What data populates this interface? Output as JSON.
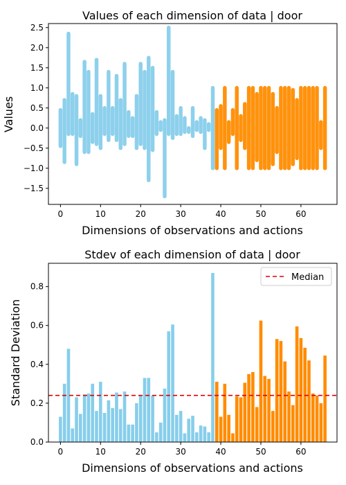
{
  "chart_data": [
    {
      "type": "scatter",
      "title": "Values of each dimension of data | door",
      "xlabel": "Dimensions of observations and actions",
      "ylabel": "Values",
      "xlim": [
        -3,
        69
      ],
      "ylim": [
        -1.9,
        2.6
      ],
      "xticks": [
        0,
        10,
        20,
        30,
        40,
        50,
        60
      ],
      "yticks": [
        -1.5,
        -1.0,
        -0.5,
        0.0,
        0.5,
        1.0,
        1.5,
        2.0,
        2.5
      ],
      "xtick_labels": [
        "0",
        "10",
        "20",
        "30",
        "40",
        "50",
        "60"
      ],
      "ytick_labels": [
        "−1.5",
        "−1.0",
        "−0.5",
        "0.0",
        "0.5",
        "1.0",
        "1.5",
        "2.0",
        "2.5"
      ],
      "observation_color": "#87ceeb",
      "action_color": "#ff8c00",
      "observation_dims": 39,
      "ranges": [
        [
          -0.45,
          0.45
        ],
        [
          -0.85,
          0.7
        ],
        [
          -0.15,
          2.35
        ],
        [
          -0.15,
          0.85
        ],
        [
          -0.9,
          0.8
        ],
        [
          -0.2,
          0.2
        ],
        [
          -0.6,
          1.65
        ],
        [
          -0.6,
          1.4
        ],
        [
          -0.35,
          0.35
        ],
        [
          -0.4,
          1.7
        ],
        [
          -0.5,
          0.8
        ],
        [
          -0.15,
          0.5
        ],
        [
          -0.3,
          1.4
        ],
        [
          -0.15,
          0.5
        ],
        [
          -0.3,
          1.3
        ],
        [
          -0.5,
          0.7
        ],
        [
          -0.4,
          1.6
        ],
        [
          -0.2,
          0.4
        ],
        [
          -0.2,
          0.25
        ],
        [
          -0.5,
          0.8
        ],
        [
          -0.4,
          1.6
        ],
        [
          -0.5,
          1.4
        ],
        [
          -1.3,
          1.75
        ],
        [
          -0.55,
          1.5
        ],
        [
          -0.15,
          0.4
        ],
        [
          -0.05,
          0.15
        ],
        [
          -1.7,
          0.2
        ],
        [
          -0.15,
          2.5
        ],
        [
          -0.25,
          1.4
        ],
        [
          -0.15,
          0.3
        ],
        [
          -0.15,
          0.5
        ],
        [
          -0.1,
          0.25
        ],
        [
          -0.1,
          0.0
        ],
        [
          -0.2,
          0.5
        ],
        [
          -0.05,
          0.15
        ],
        [
          -0.1,
          0.25
        ],
        [
          -0.5,
          0.2
        ],
        [
          -0.05,
          0.1
        ],
        [
          -1.0,
          1.0
        ],
        [
          -1.0,
          0.45
        ],
        [
          -0.5,
          0.55
        ],
        [
          -1.0,
          1.0
        ],
        [
          -0.35,
          0.15
        ],
        [
          -0.15,
          0.45
        ],
        [
          -1.0,
          1.0
        ],
        [
          -0.3,
          0.3
        ],
        [
          -0.5,
          0.6
        ],
        [
          -1.0,
          1.0
        ],
        [
          -1.0,
          1.0
        ],
        [
          -0.8,
          0.85
        ],
        [
          -1.0,
          1.0
        ],
        [
          -1.0,
          1.0
        ],
        [
          -1.0,
          1.0
        ],
        [
          -0.9,
          0.85
        ],
        [
          -0.6,
          0.5
        ],
        [
          -1.0,
          1.0
        ],
        [
          -1.0,
          1.0
        ],
        [
          -1.0,
          1.0
        ],
        [
          -0.9,
          0.95
        ],
        [
          -0.75,
          0.7
        ],
        [
          -1.0,
          1.0
        ],
        [
          -1.0,
          1.0
        ],
        [
          -1.0,
          1.0
        ],
        [
          -1.0,
          1.0
        ],
        [
          -1.0,
          1.0
        ],
        [
          -0.5,
          0.15
        ],
        [
          -1.0,
          1.0
        ]
      ]
    },
    {
      "type": "bar",
      "title": "Stdev of each dimension of data | door",
      "xlabel": "Dimensions of observations and actions",
      "ylabel": "Standard Deviation",
      "xlim": [
        -3,
        69
      ],
      "ylim": [
        0,
        0.92
      ],
      "xticks": [
        0,
        10,
        20,
        30,
        40,
        50,
        60
      ],
      "yticks": [
        0.0,
        0.2,
        0.4,
        0.6,
        0.8
      ],
      "xtick_labels": [
        "0",
        "10",
        "20",
        "30",
        "40",
        "50",
        "60"
      ],
      "ytick_labels": [
        "0.0",
        "0.2",
        "0.4",
        "0.6",
        "0.8"
      ],
      "observation_color": "#87ceeb",
      "action_color": "#ff8c00",
      "median_color": "#dd0000",
      "observation_dims": 39,
      "median": 0.24,
      "legend": [
        "Median"
      ],
      "legend_position": "upper-right",
      "values": [
        0.13,
        0.3,
        0.48,
        0.07,
        0.23,
        0.145,
        0.245,
        0.25,
        0.3,
        0.16,
        0.31,
        0.15,
        0.215,
        0.175,
        0.255,
        0.17,
        0.26,
        0.09,
        0.09,
        0.2,
        0.24,
        0.33,
        0.33,
        0.24,
        0.05,
        0.1,
        0.275,
        0.57,
        0.605,
        0.14,
        0.16,
        0.045,
        0.12,
        0.135,
        0.05,
        0.085,
        0.08,
        0.05,
        0.87,
        0.31,
        0.13,
        0.3,
        0.14,
        0.045,
        0.235,
        0.23,
        0.305,
        0.35,
        0.36,
        0.18,
        0.625,
        0.34,
        0.325,
        0.16,
        0.53,
        0.52,
        0.415,
        0.26,
        0.19,
        0.595,
        0.535,
        0.485,
        0.42,
        0.25,
        0.24,
        0.2,
        0.445
      ]
    }
  ]
}
